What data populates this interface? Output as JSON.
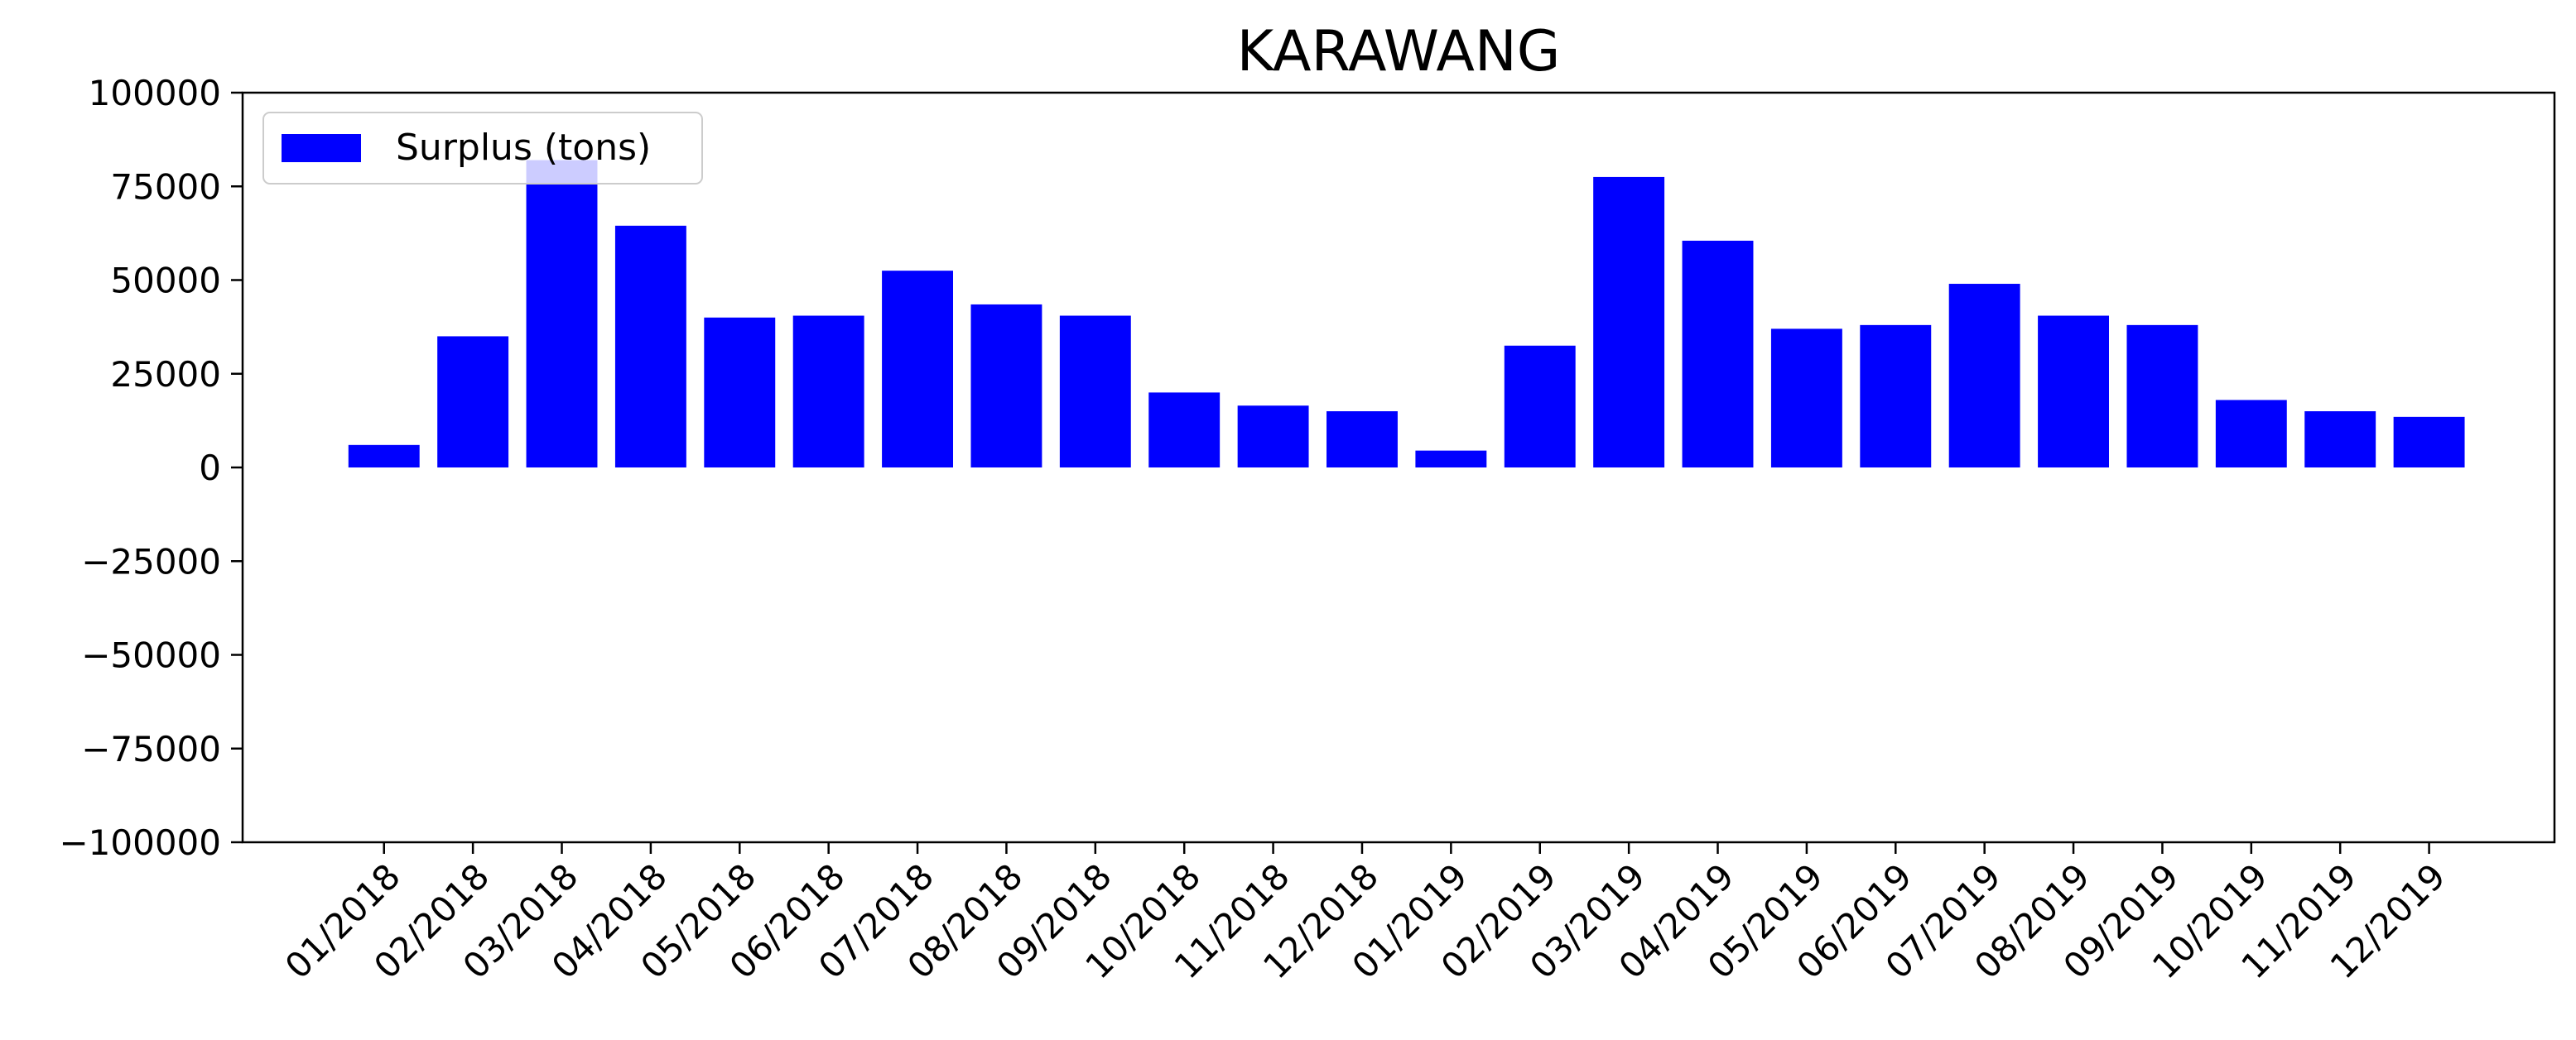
{
  "chart_data": {
    "type": "bar",
    "title": "KARAWANG",
    "xlabel": "",
    "ylabel": "",
    "categories": [
      "01/2018",
      "02/2018",
      "03/2018",
      "04/2018",
      "05/2018",
      "06/2018",
      "07/2018",
      "08/2018",
      "09/2018",
      "10/2018",
      "11/2018",
      "12/2018",
      "01/2019",
      "02/2019",
      "03/2019",
      "04/2019",
      "05/2019",
      "06/2019",
      "07/2019",
      "08/2019",
      "09/2019",
      "10/2019",
      "11/2019",
      "12/2019"
    ],
    "series": [
      {
        "name": "Surplus (tons)",
        "color": "#0000ff",
        "values": [
          6000,
          35000,
          82000,
          64500,
          40000,
          40500,
          52500,
          43500,
          40500,
          20000,
          16500,
          15000,
          4500,
          32500,
          77500,
          60500,
          37000,
          38000,
          49000,
          40500,
          38000,
          18000,
          15000,
          13500
        ]
      }
    ],
    "ylim": [
      -100000,
      100000
    ],
    "yticks": [
      "100000",
      "75000",
      "50000",
      "25000",
      "0",
      "−25000",
      "−50000",
      "−75000",
      "−100000"
    ],
    "ytick_values": [
      100000,
      75000,
      50000,
      25000,
      0,
      -25000,
      -50000,
      -75000,
      -100000
    ],
    "grid": false,
    "legend_position": "upper left",
    "tick_label_rotation": 45
  }
}
